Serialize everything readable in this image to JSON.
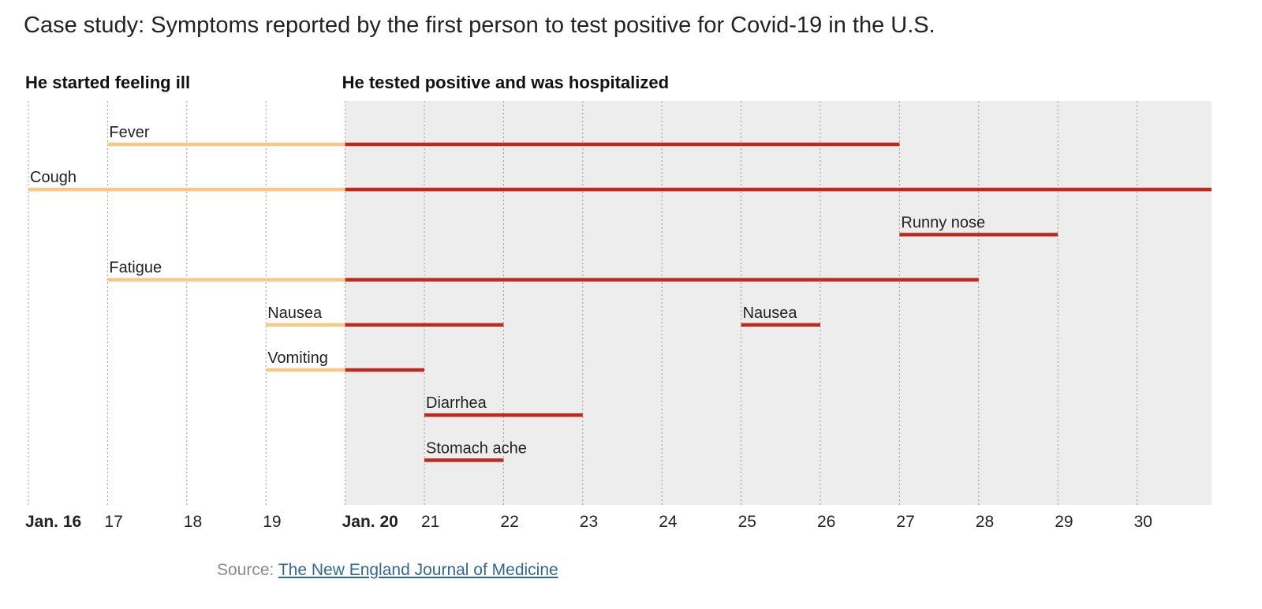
{
  "title": "Case study: Symptoms reported by the first person to test positive for Covid-19 in the U.S.",
  "source": {
    "prefix": "Source: ",
    "link_text": "The New England Journal of Medicine"
  },
  "colors": {
    "before_test": "#f6c98a",
    "after_test": "#c0271f",
    "hospital_bg": "#ededed",
    "gridline": "#9a9a9a",
    "text": "#222222"
  },
  "chart_data": {
    "type": "timeline",
    "x_unit": "day of January",
    "x_range": [
      16,
      31
    ],
    "tick_labels": [
      {
        "day": 16,
        "label": "Jan. 16",
        "bold": true
      },
      {
        "day": 17,
        "label": "17"
      },
      {
        "day": 18,
        "label": "18"
      },
      {
        "day": 19,
        "label": "19"
      },
      {
        "day": 20,
        "label": "Jan. 20",
        "bold": true
      },
      {
        "day": 21,
        "label": "21"
      },
      {
        "day": 22,
        "label": "22"
      },
      {
        "day": 23,
        "label": "23"
      },
      {
        "day": 24,
        "label": "24"
      },
      {
        "day": 25,
        "label": "25"
      },
      {
        "day": 26,
        "label": "26"
      },
      {
        "day": 27,
        "label": "27"
      },
      {
        "day": 28,
        "label": "28"
      },
      {
        "day": 29,
        "label": "29"
      },
      {
        "day": 30,
        "label": "30"
      }
    ],
    "annotations": [
      {
        "day": 16,
        "text": "He started feeling ill"
      },
      {
        "day": 20,
        "text": "He tested positive and was hospitalized"
      }
    ],
    "hospitalized_from": 20,
    "symptoms": [
      {
        "label": "Fever",
        "row": 0,
        "start": 17,
        "end": 27
      },
      {
        "label": "Cough",
        "row": 1,
        "start": 16,
        "end": 31
      },
      {
        "label": "Runny nose",
        "row": 2,
        "start": 27,
        "end": 29
      },
      {
        "label": "Fatigue",
        "row": 3,
        "start": 17,
        "end": 28
      },
      {
        "label": "Nausea",
        "row": 4,
        "start": 19,
        "end": 22
      },
      {
        "label": "Nausea",
        "row": 4,
        "start": 25,
        "end": 26
      },
      {
        "label": "Vomiting",
        "row": 5,
        "start": 19,
        "end": 21
      },
      {
        "label": "Diarrhea",
        "row": 6,
        "start": 21,
        "end": 23
      },
      {
        "label": "Stomach ache",
        "row": 7,
        "start": 21,
        "end": 22
      }
    ]
  }
}
